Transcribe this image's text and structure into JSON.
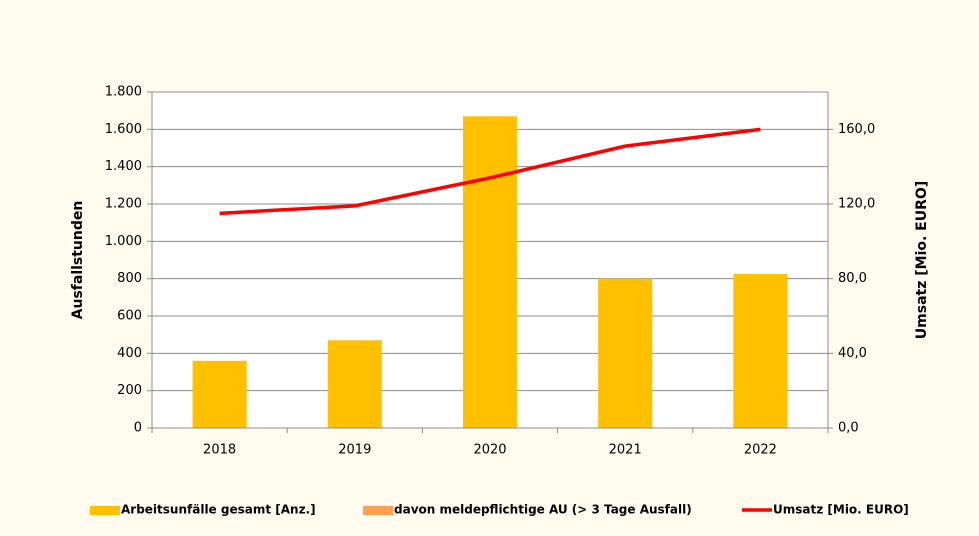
{
  "chart_data": {
    "type": "bar",
    "categories": [
      "2018",
      "2019",
      "2020",
      "2021",
      "2022"
    ],
    "series": [
      {
        "name": "Arbeitsunfälle gesamt [Anz.]",
        "color": "#ffc000",
        "type": "bar",
        "values": [
          360,
          470,
          1670,
          800,
          825
        ]
      },
      {
        "name": "davon meldepflichtige AU (> 3 Tage Ausfall)",
        "color": "#ff9f50",
        "type": "bar",
        "values": [
          null,
          null,
          null,
          null,
          null
        ]
      },
      {
        "name": "Umsatz [Mio. EURO]",
        "color": "#ff0000",
        "type": "line",
        "axis": "y2",
        "values": [
          115,
          119,
          134,
          151,
          160
        ]
      }
    ],
    "ylabel": "Ausfallstunden",
    "y2label": "Umsatz [Mio. EURO]",
    "ylim": [
      0,
      1800
    ],
    "yticks": [
      0,
      200,
      400,
      600,
      800,
      {
        "value": 1000,
        "label": "1.000"
      },
      {
        "value": 1200,
        "label": "1.200"
      },
      {
        "value": 1400,
        "label": "1.400"
      },
      {
        "value": 1600,
        "label": "1.600"
      },
      {
        "value": 1800,
        "label": "1.800"
      }
    ],
    "y2lim": [
      0,
      180
    ],
    "y2ticks": [
      {
        "value": 0,
        "label": "0,0"
      },
      {
        "value": 40,
        "label": "40,0"
      },
      {
        "value": 80,
        "label": "80,0"
      },
      {
        "value": 120,
        "label": "120,0"
      },
      {
        "value": 160,
        "label": "160,0"
      }
    ],
    "grid": true,
    "legend": "bottom"
  }
}
